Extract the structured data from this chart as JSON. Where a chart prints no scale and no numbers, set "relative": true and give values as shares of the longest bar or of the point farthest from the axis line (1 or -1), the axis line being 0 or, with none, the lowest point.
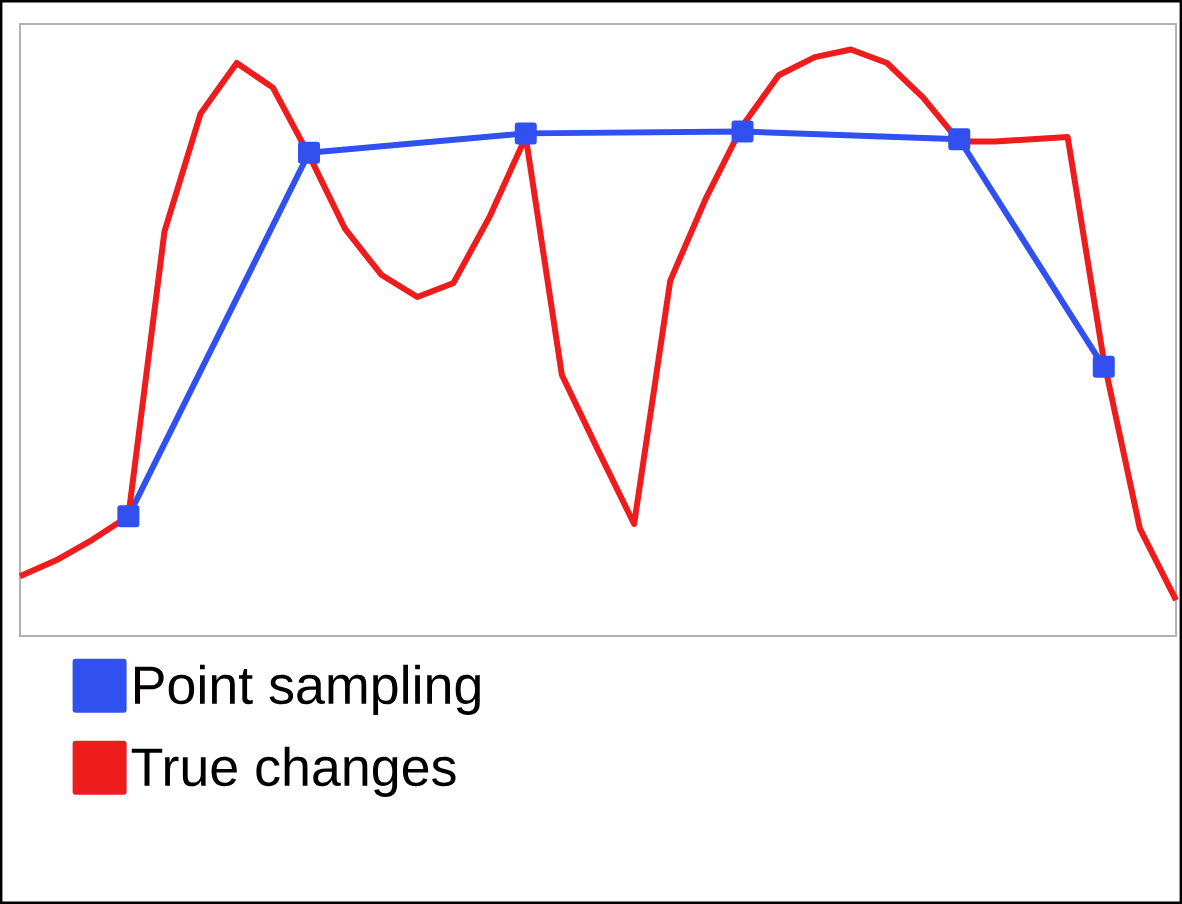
{
  "chart_data": {
    "type": "line",
    "relative": true,
    "legend": "bottom left",
    "categories": [
      null,
      null,
      null,
      null,
      null,
      null,
      null,
      null,
      null,
      null,
      null,
      null,
      null,
      null,
      null,
      null,
      null,
      null,
      null,
      null,
      null,
      null,
      null,
      null,
      null,
      null,
      null,
      null,
      null,
      null,
      null,
      null,
      null
    ],
    "series": [
      {
        "name": "Point sampling",
        "color": "#3050f0",
        "marker": "square",
        "values": [
          null,
          null,
          null,
          0.204,
          null,
          null,
          null,
          null,
          0.824,
          null,
          null,
          null,
          null,
          null,
          0.857,
          null,
          null,
          null,
          null,
          null,
          0.86,
          null,
          null,
          null,
          null,
          null,
          0.847,
          null,
          null,
          null,
          0.459,
          null,
          null
        ]
      },
      {
        "name": "True changes",
        "color": "#ee1c1c",
        "marker": "none",
        "values": [
          0.102,
          0.129,
          0.164,
          0.204,
          0.69,
          0.891,
          0.977,
          0.935,
          0.82,
          0.694,
          0.616,
          0.578,
          0.602,
          0.715,
          0.851,
          0.445,
          0.317,
          0.191,
          0.606,
          0.748,
          0.87,
          0.956,
          0.987,
          1.0,
          0.977,
          0.918,
          0.843,
          0.843,
          0.847,
          0.851,
          0.47,
          0.183,
          0.061
        ]
      }
    ]
  }
}
